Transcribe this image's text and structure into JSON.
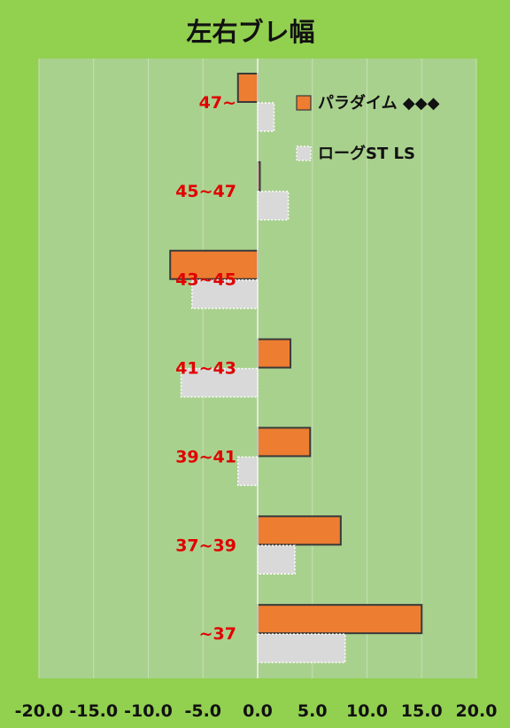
{
  "chart_data": {
    "type": "bar",
    "orientation": "horizontal",
    "title": "左右ブレ幅",
    "categories": [
      "47~",
      "45~47",
      "43~45",
      "41~43",
      "39~41",
      "37~39",
      "~37"
    ],
    "series": [
      {
        "name": "パラダイム ◆◆◆",
        "values": [
          -1.8,
          0.2,
          -8.0,
          3.0,
          4.8,
          7.6,
          15.0
        ],
        "color": "#ed7d31",
        "border": "#3a3a3a"
      },
      {
        "name": "ローグST LS",
        "values": [
          1.5,
          2.8,
          -6.0,
          -7.0,
          -1.8,
          3.4,
          8.0
        ],
        "color": "#d9d9d9",
        "border": "#ffffff"
      }
    ],
    "xlim": [
      -20,
      20
    ],
    "xticks": [
      -20,
      -15,
      -10,
      -5,
      0,
      5,
      10,
      15,
      20
    ],
    "tick_labels": [
      "-20.0",
      "-15.0",
      "-10.0",
      "-5.0",
      "0.0",
      "5.0",
      "10.0",
      "15.0",
      "20.0"
    ],
    "grid": true,
    "legend_position": "top-right",
    "colors": {
      "background": "#92d050",
      "plot_area": "#a9d18e",
      "category_label": "#e00000"
    }
  }
}
